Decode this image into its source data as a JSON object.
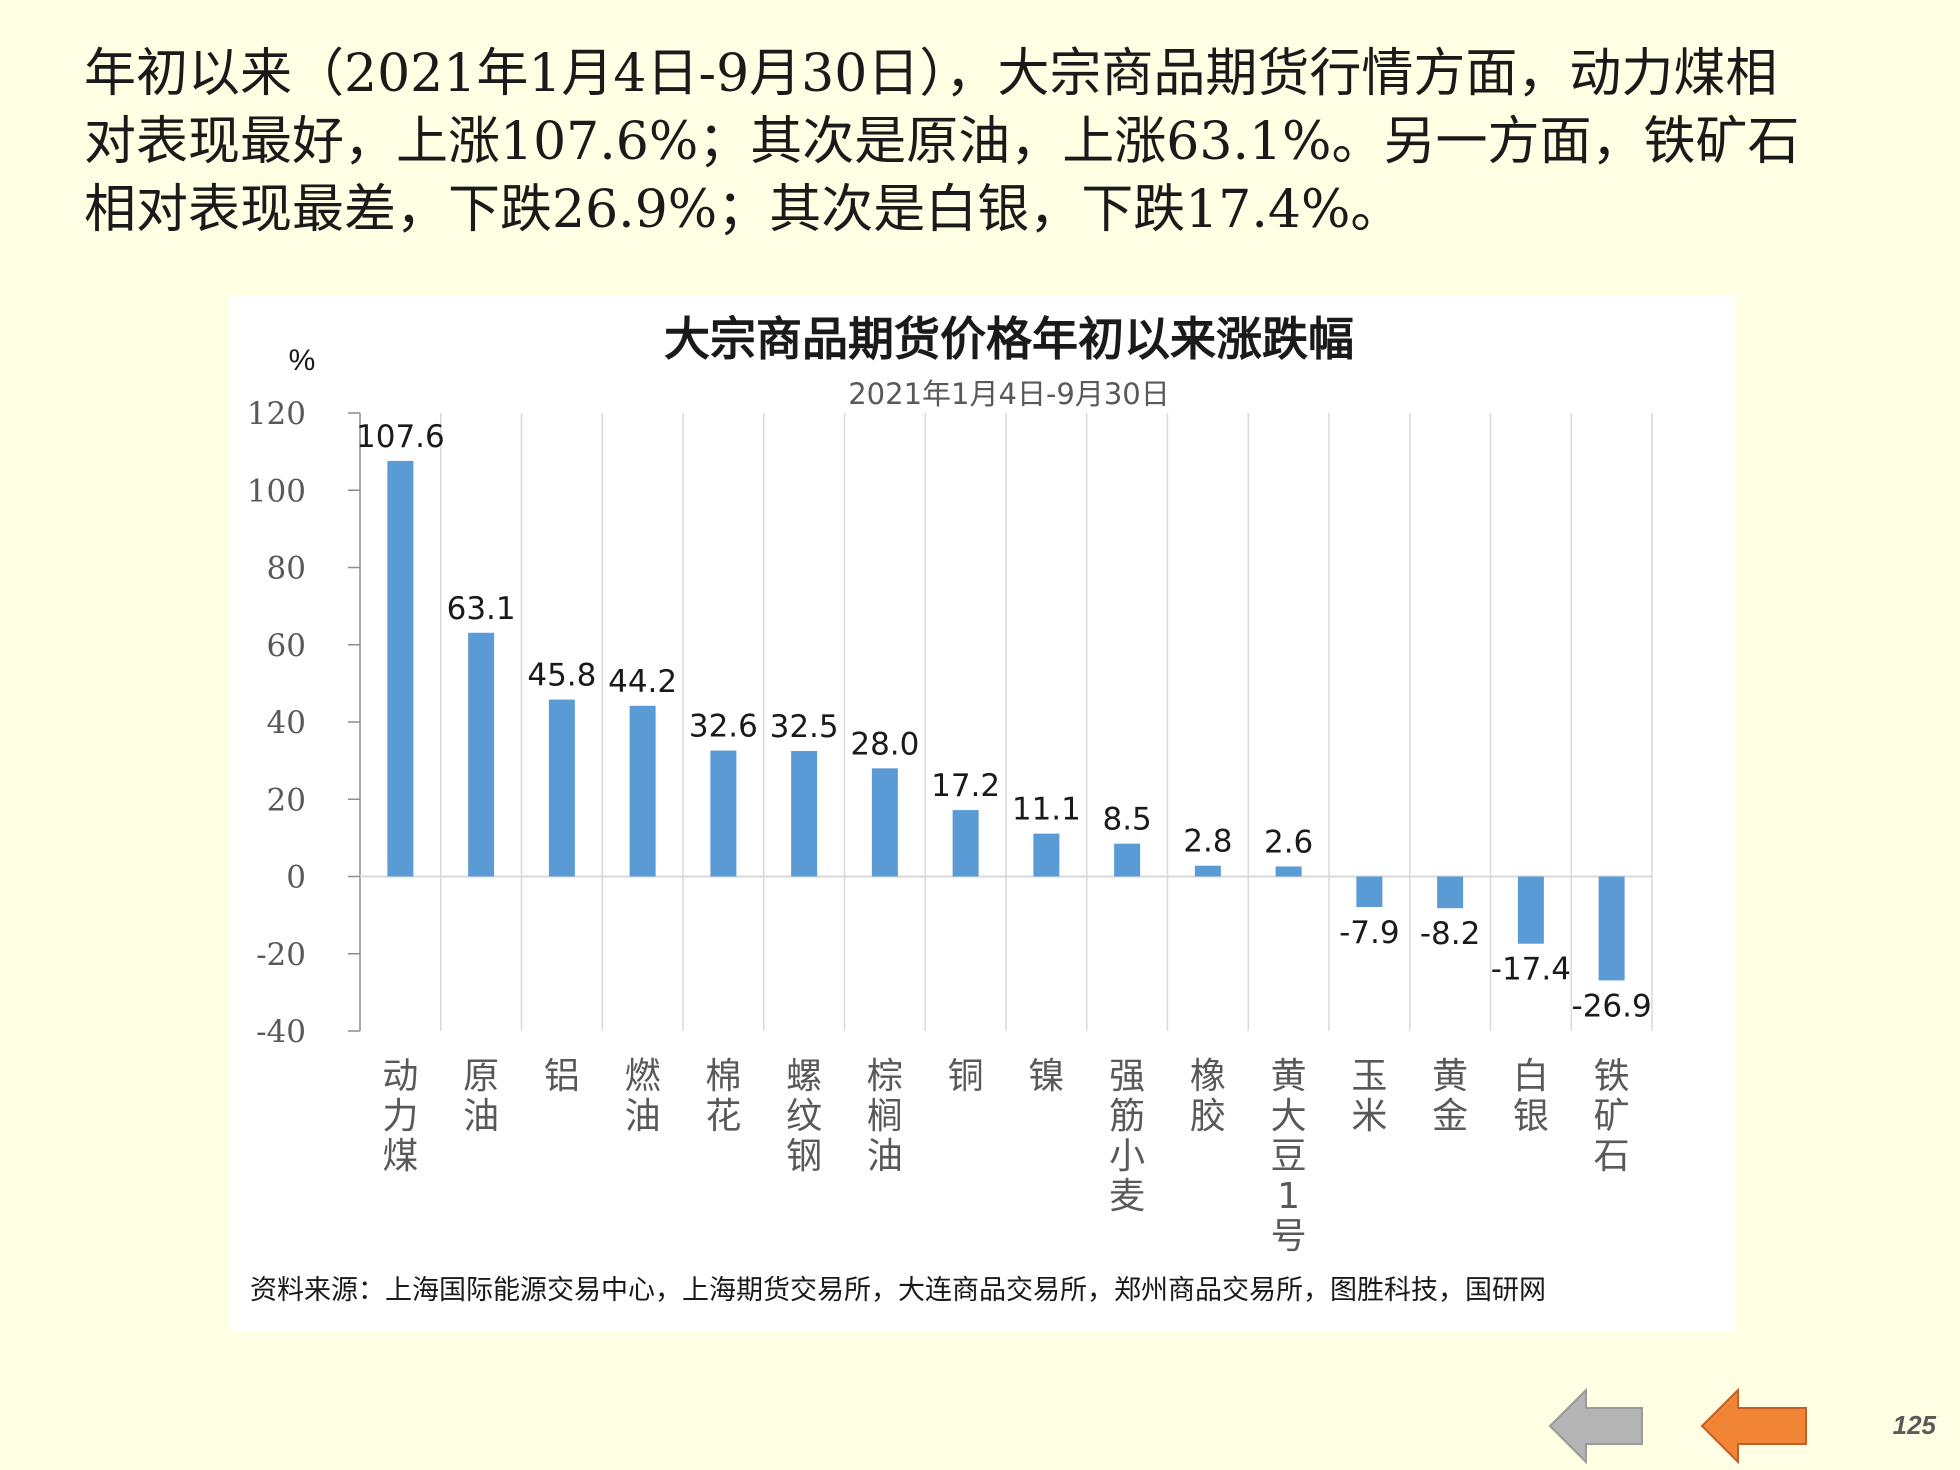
{
  "intro": {
    "line1": "年初以来（2021年1月4日-9月30日），大宗商品期货行情方面，动力煤相",
    "line2": "对表现最好，上涨107.6%；其次是原油，上涨63.1%。另一方面，铁矿石",
    "line3": "相对表现最差，下跌26.9%；其次是白银，下跌17.4%。"
  },
  "chart_data": {
    "type": "bar",
    "title": "大宗商品期货价格年初以来涨跌幅",
    "subtitle": "2021年1月4日-9月30日",
    "ylabel": "%",
    "ylim": [
      -40,
      120
    ],
    "yticks": [
      "120",
      "100",
      "80",
      "60",
      "40",
      "20",
      "0",
      "-20",
      "-40"
    ],
    "ytick_values": [
      120,
      100,
      80,
      60,
      40,
      20,
      0,
      -20,
      -40
    ],
    "categories": [
      "动力煤",
      "原油",
      "铝",
      "燃油",
      "棉花",
      "螺纹钢",
      "棕榈油",
      "铜",
      "镍",
      "强筋小麦",
      "橡胶",
      "黄大豆1号",
      "玉米",
      "黄金",
      "白银",
      "铁矿石"
    ],
    "category_lines": [
      [
        "动",
        "力",
        "煤"
      ],
      [
        "原",
        "油"
      ],
      [
        "铝"
      ],
      [
        "燃",
        "油"
      ],
      [
        "棉",
        "花"
      ],
      [
        "螺",
        "纹",
        "钢"
      ],
      [
        "棕",
        "榈",
        "油"
      ],
      [
        "铜"
      ],
      [
        "镍"
      ],
      [
        "强",
        "筋",
        "小",
        "麦"
      ],
      [
        "橡",
        "胶"
      ],
      [
        "黄",
        "大",
        "豆",
        "1",
        "号"
      ],
      [
        "玉",
        "米"
      ],
      [
        "黄",
        "金"
      ],
      [
        "白",
        "银"
      ],
      [
        "铁",
        "矿",
        "石"
      ]
    ],
    "values": [
      107.6,
      63.1,
      45.8,
      44.2,
      32.6,
      32.5,
      28.0,
      17.2,
      11.1,
      8.5,
      2.8,
      2.6,
      -7.9,
      -8.2,
      -17.4,
      -26.9
    ],
    "data_labels": [
      "107.6",
      "63.1",
      "45.8",
      "44.2",
      "32.6",
      "32.5",
      "28.0",
      "17.2",
      "11.1",
      "8.5",
      "2.8",
      "2.6",
      "-7.9",
      "-8.2",
      "-17.4",
      "-26.9"
    ],
    "grid": "vertical",
    "bar_color": "#5b9bd5",
    "grid_color": "#d9d9d9",
    "axis_color": "#8c8c8c"
  },
  "source": "资料来源：上海国际能源交易中心，上海期货交易所，大连商品交易所，郑州商品交易所，图胜科技，国研网",
  "nav": {
    "back_icon": "arrow-left-gray-icon",
    "forward_icon": "arrow-left-orange-icon",
    "back_color": "#b4b4b4",
    "forward_color": "#f28535"
  },
  "page_number": "125"
}
